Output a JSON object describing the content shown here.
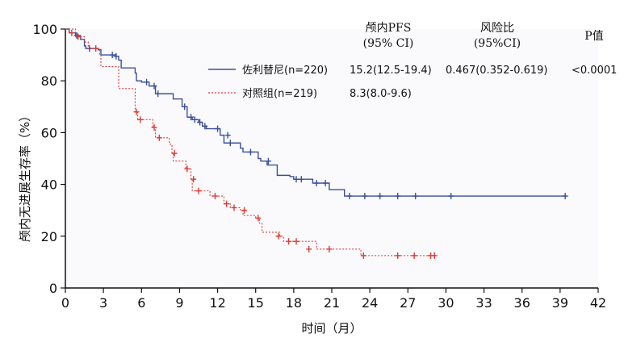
{
  "chart_data": {
    "type": "line",
    "step": true,
    "xlabel": "时间（月）",
    "ylabel": "颅内无进展生存率（%）",
    "xlim": [
      0,
      42
    ],
    "ylim": [
      0,
      100
    ],
    "x_ticks": [
      0,
      3,
      6,
      9,
      12,
      15,
      18,
      21,
      24,
      27,
      30,
      33,
      36,
      39,
      42
    ],
    "y_ticks": [
      0,
      20,
      40,
      60,
      80,
      100
    ],
    "grid": false,
    "legend": "top-right",
    "table_headers": {
      "pfs": [
        "颅内PFS",
        "(95% CI)"
      ],
      "hr": [
        "风险比",
        "(95%CI)"
      ],
      "p": "P值"
    },
    "series": [
      {
        "name": "佐利替尼(n=220)",
        "color": "#3b4f9a",
        "line": "solid",
        "pfs": "15.2(12.5-19.4)",
        "hr": "0.467(0.352-0.619)",
        "p": "<0.0001",
        "steps": [
          [
            0,
            100
          ],
          [
            0.3,
            98.5
          ],
          [
            0.8,
            97.5
          ],
          [
            1.2,
            96
          ],
          [
            1.5,
            93.5
          ],
          [
            1.6,
            92.5
          ],
          [
            2.6,
            92
          ],
          [
            2.8,
            90
          ],
          [
            4.0,
            89.5
          ],
          [
            4.2,
            88
          ],
          [
            4.4,
            85
          ],
          [
            5.5,
            83
          ],
          [
            5.6,
            80
          ],
          [
            6.0,
            79.5
          ],
          [
            6.6,
            78
          ],
          [
            7.1,
            75
          ],
          [
            8.5,
            73
          ],
          [
            9.2,
            70
          ],
          [
            9.6,
            66
          ],
          [
            10.0,
            65
          ],
          [
            10.5,
            64
          ],
          [
            10.8,
            62.5
          ],
          [
            11.1,
            61.5
          ],
          [
            12.2,
            59
          ],
          [
            12.5,
            56
          ],
          [
            13.8,
            54
          ],
          [
            14.0,
            52.5
          ],
          [
            15.2,
            50
          ],
          [
            15.4,
            49
          ],
          [
            15.9,
            47.5
          ],
          [
            16.7,
            43.5
          ],
          [
            17.7,
            43
          ],
          [
            18.0,
            42
          ],
          [
            19.5,
            40.5
          ],
          [
            20.8,
            38
          ],
          [
            22.0,
            35.5
          ],
          [
            39.5,
            35.5
          ]
        ],
        "censors": [
          [
            0.9,
            97.5
          ],
          [
            1.9,
            92.5
          ],
          [
            3.7,
            90
          ],
          [
            4.0,
            89.5
          ],
          [
            6.4,
            79.5
          ],
          [
            7.0,
            78
          ],
          [
            7.3,
            75
          ],
          [
            9.4,
            70
          ],
          [
            9.9,
            66
          ],
          [
            10.2,
            65
          ],
          [
            10.6,
            64
          ],
          [
            11.0,
            62.5
          ],
          [
            12.0,
            61.5
          ],
          [
            12.8,
            59
          ],
          [
            13.0,
            56
          ],
          [
            14.6,
            52.5
          ],
          [
            16.0,
            49
          ],
          [
            18.2,
            42
          ],
          [
            18.6,
            42
          ],
          [
            19.8,
            40.5
          ],
          [
            20.5,
            40.5
          ],
          [
            22.4,
            35.5
          ],
          [
            23.6,
            35.5
          ],
          [
            24.8,
            35.5
          ],
          [
            26.2,
            35.5
          ],
          [
            27.6,
            35.5
          ],
          [
            30.4,
            35.5
          ],
          [
            39.4,
            35.5
          ]
        ]
      },
      {
        "name": "对照组(n=219)",
        "color": "#e03a33",
        "line": "dotted",
        "pfs": "8.3(8.0-9.6)",
        "hr": "",
        "p": "",
        "steps": [
          [
            0,
            100
          ],
          [
            0.8,
            97
          ],
          [
            1.5,
            95
          ],
          [
            1.8,
            92.5
          ],
          [
            2.7,
            90
          ],
          [
            2.8,
            85.5
          ],
          [
            4.2,
            77
          ],
          [
            5.5,
            68
          ],
          [
            5.7,
            65
          ],
          [
            6.9,
            62
          ],
          [
            7.1,
            58
          ],
          [
            8.2,
            55.5
          ],
          [
            8.4,
            52
          ],
          [
            8.5,
            49
          ],
          [
            9.5,
            46
          ],
          [
            9.9,
            42
          ],
          [
            10.0,
            37.5
          ],
          [
            11.4,
            35.5
          ],
          [
            12.5,
            32.5
          ],
          [
            13.0,
            31
          ],
          [
            13.8,
            30
          ],
          [
            14.0,
            28
          ],
          [
            15.0,
            27
          ],
          [
            15.3,
            25
          ],
          [
            15.5,
            21.5
          ],
          [
            16.9,
            20
          ],
          [
            17.2,
            18
          ],
          [
            19.8,
            15
          ],
          [
            23.3,
            12.5
          ],
          [
            29.1,
            12.5
          ]
        ],
        "censors": [
          [
            0.5,
            98.5
          ],
          [
            1.0,
            97
          ],
          [
            2.4,
            92.5
          ],
          [
            5.6,
            68
          ],
          [
            5.9,
            65
          ],
          [
            7.0,
            62
          ],
          [
            7.4,
            58
          ],
          [
            8.6,
            52
          ],
          [
            9.6,
            46
          ],
          [
            10.1,
            42
          ],
          [
            10.5,
            37.5
          ],
          [
            11.8,
            35.5
          ],
          [
            12.7,
            32.5
          ],
          [
            13.3,
            31
          ],
          [
            14.1,
            30
          ],
          [
            15.2,
            27
          ],
          [
            16.8,
            20
          ],
          [
            17.6,
            18
          ],
          [
            18.2,
            18
          ],
          [
            19.2,
            15
          ],
          [
            20.8,
            15
          ],
          [
            23.5,
            12.5
          ],
          [
            26.2,
            12.5
          ],
          [
            27.5,
            12.5
          ],
          [
            28.8,
            12.5
          ],
          [
            29.1,
            12.5
          ]
        ]
      }
    ]
  }
}
